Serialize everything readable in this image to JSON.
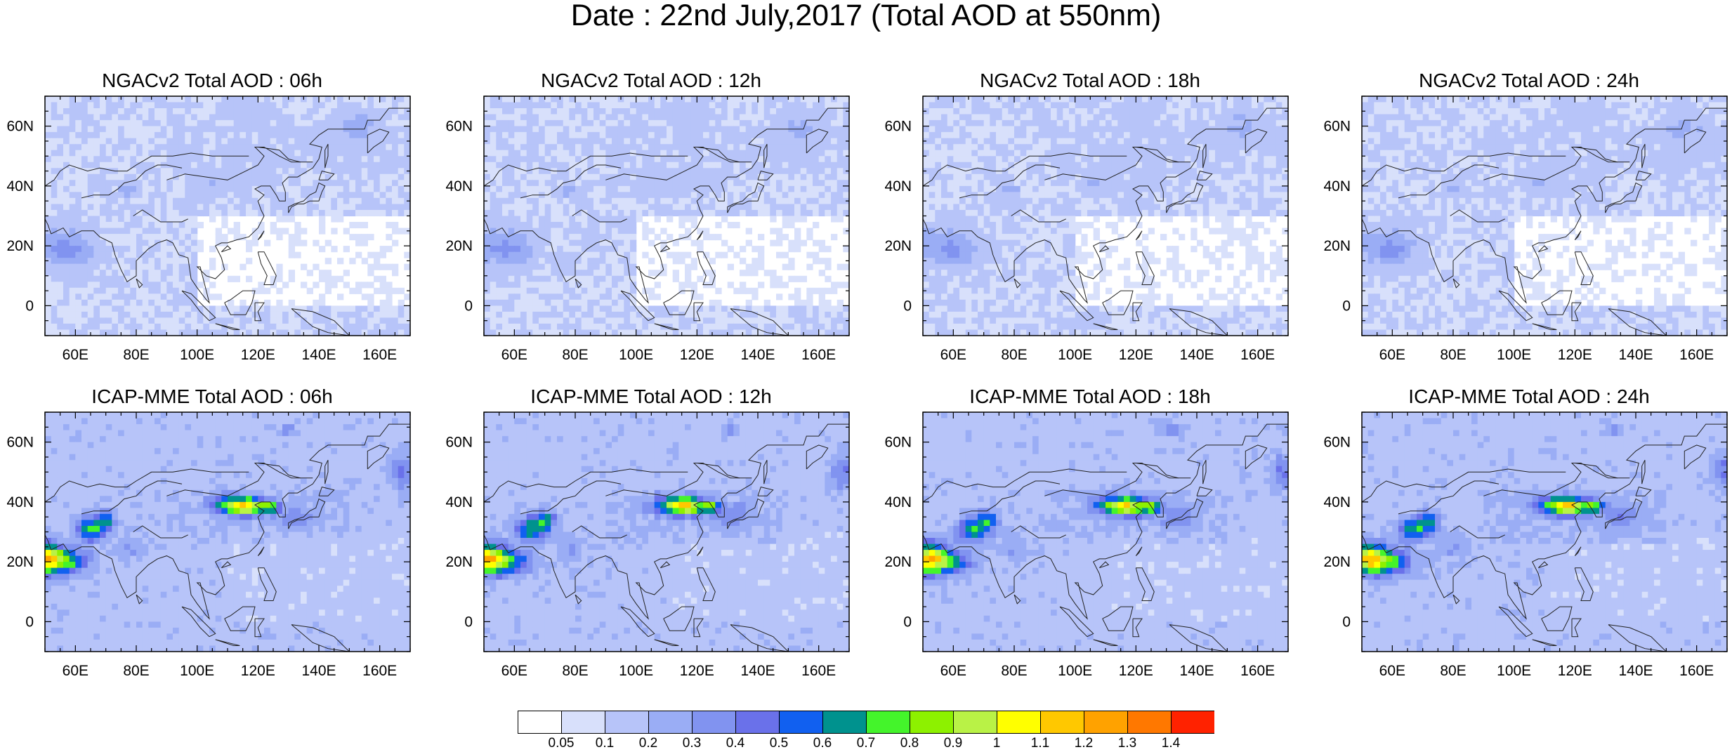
{
  "title": "Date : 22nd July,2017 (Total AOD at 550nm)",
  "lat_labels": [
    "60N",
    "40N",
    "20N",
    "0"
  ],
  "lat_values": [
    60,
    40,
    20,
    0
  ],
  "lon_labels": [
    "60E",
    "80E",
    "100E",
    "120E",
    "140E",
    "160E"
  ],
  "lon_values": [
    60,
    80,
    100,
    120,
    140,
    160
  ],
  "map_extent": {
    "lon": [
      50,
      170
    ],
    "lat": [
      -10,
      70
    ]
  },
  "panels": [
    {
      "title": "NGACv2 Total AOD : 06h"
    },
    {
      "title": "NGACv2 Total AOD : 12h"
    },
    {
      "title": "NGACv2 Total AOD : 18h"
    },
    {
      "title": "NGACv2 Total AOD : 24h"
    },
    {
      "title": "ICAP-MME Total AOD : 06h"
    },
    {
      "title": "ICAP-MME Total AOD : 12h"
    },
    {
      "title": "ICAP-MME Total AOD : 18h"
    },
    {
      "title": "ICAP-MME Total AOD : 24h"
    }
  ],
  "colorbar": {
    "labels": [
      "0.05",
      "0.1",
      "0.2",
      "0.3",
      "0.4",
      "0.5",
      "0.6",
      "0.7",
      "0.8",
      "0.9",
      "1",
      "1.1",
      "1.2",
      "1.3",
      "1.4"
    ],
    "colors": [
      "#ffffff",
      "#d8e0fb",
      "#b7c4f9",
      "#9aadf5",
      "#8193f0",
      "#6a71ea",
      "#1160f0",
      "#00928e",
      "#44f42b",
      "#8df100",
      "#b9f246",
      "#ffff00",
      "#ffc800",
      "#ffa200",
      "#ff7800",
      "#ff2200"
    ]
  }
}
